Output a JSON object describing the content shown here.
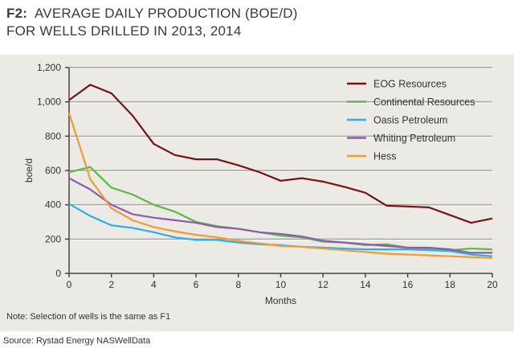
{
  "title_prefix": "F2:",
  "title_line1": "AVERAGE DAILY PRODUCTION (BOE/D)",
  "title_line2": "FOR WELLS DRILLED IN 2013, 2014",
  "note": "Note: Selection of wells is the same as F1",
  "source": "Source: Rystad Energy NASWellData",
  "chart_data": {
    "type": "line",
    "xlabel": "Months",
    "ylabel": "boe/d",
    "xlim": [
      0,
      20
    ],
    "ylim": [
      0,
      1200
    ],
    "xticks": [
      "0",
      "2",
      "4",
      "6",
      "8",
      "10",
      "12",
      "14",
      "16",
      "18",
      "20"
    ],
    "yticks": [
      "0",
      "200",
      "400",
      "600",
      "800",
      "1,000",
      "1,200"
    ],
    "grid": "horizontal",
    "legend_position": "top-right",
    "x": [
      0,
      1,
      2,
      3,
      4,
      5,
      6,
      7,
      8,
      9,
      10,
      11,
      12,
      13,
      14,
      15,
      16,
      17,
      18,
      19,
      20
    ],
    "series": [
      {
        "name": "EOG Resources",
        "color": "#7a1214",
        "values": [
          1010,
          1100,
          1050,
          920,
          755,
          690,
          665,
          665,
          630,
          590,
          540,
          555,
          535,
          505,
          470,
          395,
          390,
          385,
          340,
          295,
          320
        ]
      },
      {
        "name": "Continental Resources",
        "color": "#5cb946",
        "values": [
          590,
          620,
          500,
          460,
          400,
          360,
          300,
          275,
          260,
          240,
          220,
          210,
          185,
          180,
          165,
          170,
          150,
          145,
          135,
          145,
          140
        ]
      },
      {
        "name": "Oasis Petroleum",
        "color": "#2bb0e6",
        "values": [
          405,
          335,
          280,
          265,
          240,
          210,
          195,
          195,
          180,
          170,
          165,
          155,
          150,
          145,
          140,
          140,
          140,
          135,
          130,
          110,
          100
        ]
      },
      {
        "name": "Whiting Petroleum",
        "color": "#8a5db0",
        "values": [
          555,
          490,
          400,
          345,
          325,
          310,
          295,
          270,
          260,
          240,
          230,
          215,
          190,
          180,
          170,
          160,
          150,
          150,
          140,
          120,
          120
        ]
      },
      {
        "name": "Hess",
        "color": "#f39a32",
        "values": [
          935,
          550,
          380,
          310,
          270,
          245,
          225,
          210,
          190,
          175,
          160,
          155,
          145,
          135,
          125,
          115,
          110,
          105,
          100,
          95,
          90
        ]
      }
    ]
  }
}
